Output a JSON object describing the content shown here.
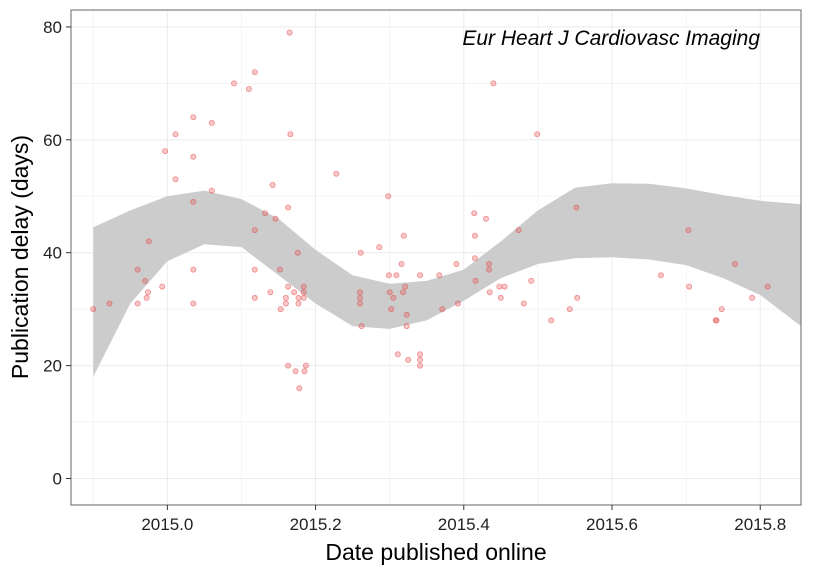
{
  "chart_data": {
    "type": "scatter",
    "annotation": "Eur Heart J Cardiovasc Imaging",
    "xlabel": "Date published online",
    "ylabel": "Publication delay (days)",
    "xlim": [
      2014.87,
      2015.855
    ],
    "ylim": [
      -4.7,
      83
    ],
    "x_ticks": [
      "2015.0",
      "2015.2",
      "2015.4",
      "2015.6",
      "2015.8"
    ],
    "y_ticks": [
      "0",
      "20",
      "40",
      "60",
      "80"
    ],
    "grid": true,
    "legend": "none",
    "point_color": "#e8474a",
    "band_color": "#cccccc",
    "points": [
      {
        "x": 2014.9,
        "y": 30
      },
      {
        "x": 2014.922,
        "y": 31
      },
      {
        "x": 2014.96,
        "y": 37
      },
      {
        "x": 2014.96,
        "y": 31
      },
      {
        "x": 2014.97,
        "y": 35
      },
      {
        "x": 2014.972,
        "y": 32
      },
      {
        "x": 2014.974,
        "y": 33
      },
      {
        "x": 2014.975,
        "y": 42
      },
      {
        "x": 2014.993,
        "y": 34
      },
      {
        "x": 2014.997,
        "y": 58
      },
      {
        "x": 2015.011,
        "y": 61
      },
      {
        "x": 2015.011,
        "y": 53
      },
      {
        "x": 2015.035,
        "y": 64
      },
      {
        "x": 2015.035,
        "y": 57
      },
      {
        "x": 2015.035,
        "y": 49
      },
      {
        "x": 2015.035,
        "y": 37
      },
      {
        "x": 2015.035,
        "y": 31
      },
      {
        "x": 2015.06,
        "y": 63
      },
      {
        "x": 2015.06,
        "y": 51
      },
      {
        "x": 2015.09,
        "y": 70
      },
      {
        "x": 2015.11,
        "y": 69
      },
      {
        "x": 2015.118,
        "y": 72
      },
      {
        "x": 2015.118,
        "y": 44
      },
      {
        "x": 2015.118,
        "y": 37
      },
      {
        "x": 2015.118,
        "y": 32
      },
      {
        "x": 2015.132,
        "y": 47
      },
      {
        "x": 2015.139,
        "y": 33
      },
      {
        "x": 2015.142,
        "y": 52
      },
      {
        "x": 2015.146,
        "y": 46
      },
      {
        "x": 2015.152,
        "y": 37
      },
      {
        "x": 2015.153,
        "y": 30
      },
      {
        "x": 2015.16,
        "y": 32
      },
      {
        "x": 2015.16,
        "y": 31
      },
      {
        "x": 2015.163,
        "y": 48
      },
      {
        "x": 2015.163,
        "y": 34
      },
      {
        "x": 2015.163,
        "y": 20
      },
      {
        "x": 2015.165,
        "y": 79
      },
      {
        "x": 2015.166,
        "y": 61
      },
      {
        "x": 2015.171,
        "y": 33
      },
      {
        "x": 2015.173,
        "y": 19
      },
      {
        "x": 2015.176,
        "y": 40
      },
      {
        "x": 2015.177,
        "y": 32
      },
      {
        "x": 2015.177,
        "y": 31
      },
      {
        "x": 2015.178,
        "y": 16
      },
      {
        "x": 2015.184,
        "y": 34
      },
      {
        "x": 2015.184,
        "y": 33
      },
      {
        "x": 2015.184,
        "y": 32
      },
      {
        "x": 2015.185,
        "y": 19
      },
      {
        "x": 2015.187,
        "y": 20
      },
      {
        "x": 2015.228,
        "y": 54
      },
      {
        "x": 2015.26,
        "y": 33
      },
      {
        "x": 2015.26,
        "y": 32
      },
      {
        "x": 2015.26,
        "y": 31
      },
      {
        "x": 2015.261,
        "y": 40
      },
      {
        "x": 2015.262,
        "y": 27
      },
      {
        "x": 2015.286,
        "y": 41
      },
      {
        "x": 2015.298,
        "y": 50
      },
      {
        "x": 2015.299,
        "y": 36
      },
      {
        "x": 2015.3,
        "y": 33
      },
      {
        "x": 2015.302,
        "y": 30
      },
      {
        "x": 2015.305,
        "y": 32
      },
      {
        "x": 2015.309,
        "y": 36
      },
      {
        "x": 2015.311,
        "y": 22
      },
      {
        "x": 2015.316,
        "y": 38
      },
      {
        "x": 2015.318,
        "y": 33
      },
      {
        "x": 2015.319,
        "y": 43
      },
      {
        "x": 2015.321,
        "y": 34
      },
      {
        "x": 2015.323,
        "y": 29
      },
      {
        "x": 2015.323,
        "y": 27
      },
      {
        "x": 2015.325,
        "y": 21
      },
      {
        "x": 2015.341,
        "y": 36
      },
      {
        "x": 2015.341,
        "y": 22
      },
      {
        "x": 2015.341,
        "y": 21
      },
      {
        "x": 2015.341,
        "y": 20
      },
      {
        "x": 2015.367,
        "y": 36
      },
      {
        "x": 2015.371,
        "y": 30
      },
      {
        "x": 2015.39,
        "y": 38
      },
      {
        "x": 2015.392,
        "y": 31
      },
      {
        "x": 2015.414,
        "y": 47
      },
      {
        "x": 2015.415,
        "y": 43
      },
      {
        "x": 2015.415,
        "y": 39
      },
      {
        "x": 2015.416,
        "y": 35
      },
      {
        "x": 2015.43,
        "y": 46
      },
      {
        "x": 2015.434,
        "y": 38
      },
      {
        "x": 2015.434,
        "y": 37
      },
      {
        "x": 2015.435,
        "y": 33
      },
      {
        "x": 2015.44,
        "y": 70
      },
      {
        "x": 2015.448,
        "y": 34
      },
      {
        "x": 2015.45,
        "y": 32
      },
      {
        "x": 2015.455,
        "y": 34
      },
      {
        "x": 2015.474,
        "y": 44
      },
      {
        "x": 2015.481,
        "y": 31
      },
      {
        "x": 2015.491,
        "y": 35
      },
      {
        "x": 2015.499,
        "y": 61
      },
      {
        "x": 2015.518,
        "y": 28
      },
      {
        "x": 2015.543,
        "y": 30
      },
      {
        "x": 2015.552,
        "y": 48
      },
      {
        "x": 2015.553,
        "y": 32
      },
      {
        "x": 2015.666,
        "y": 36
      },
      {
        "x": 2015.703,
        "y": 44
      },
      {
        "x": 2015.704,
        "y": 34
      },
      {
        "x": 2015.74,
        "y": 28
      },
      {
        "x": 2015.741,
        "y": 28
      },
      {
        "x": 2015.748,
        "y": 30
      },
      {
        "x": 2015.766,
        "y": 38
      },
      {
        "x": 2015.789,
        "y": 32
      },
      {
        "x": 2015.81,
        "y": 34
      }
    ],
    "smooth_band": {
      "x": [
        2014.9,
        2014.95,
        2015.0,
        2015.05,
        2015.1,
        2015.15,
        2015.2,
        2015.25,
        2015.3,
        2015.35,
        2015.4,
        2015.45,
        2015.5,
        2015.55,
        2015.6,
        2015.65,
        2015.7,
        2015.75,
        2015.8,
        2015.855
      ],
      "upper": [
        44.5,
        47.5,
        50.0,
        51.0,
        49.5,
        46.0,
        40.5,
        36.0,
        34.5,
        35.0,
        37.0,
        42.0,
        47.5,
        51.5,
        52.3,
        52.2,
        51.4,
        50.2,
        49.2,
        48.6
      ],
      "lower": [
        18.0,
        31.0,
        38.5,
        41.5,
        41.0,
        36.0,
        31.0,
        27.0,
        26.5,
        28.0,
        31.5,
        35.5,
        38.0,
        39.0,
        39.2,
        38.8,
        37.8,
        35.5,
        32.5,
        27.0
      ]
    }
  }
}
